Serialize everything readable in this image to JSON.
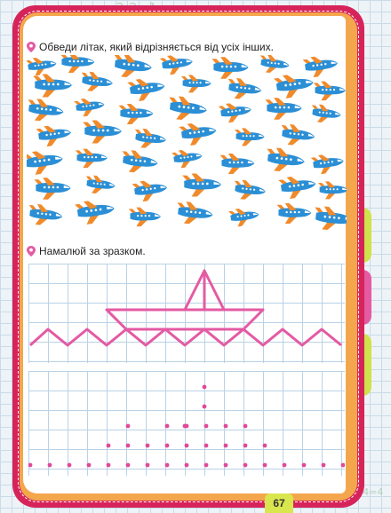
{
  "header_scribble": "3-2=1",
  "scribble_right": "1+4=4",
  "task1": {
    "text": "Обведи літак, який відрізняється від усіх інших."
  },
  "task2": {
    "text": "Намалюй за зразком."
  },
  "page_number": "67",
  "colors": {
    "frame": "#d6245a",
    "accent_pink": "#e45aa3",
    "plane_body": "#2b8fd6",
    "plane_wing": "#f08a2a",
    "grid": "#b9d2e6",
    "dot": "#e0489a"
  },
  "icons": {
    "task_marker": "location-pin-icon",
    "plane": "airplane-icon"
  }
}
